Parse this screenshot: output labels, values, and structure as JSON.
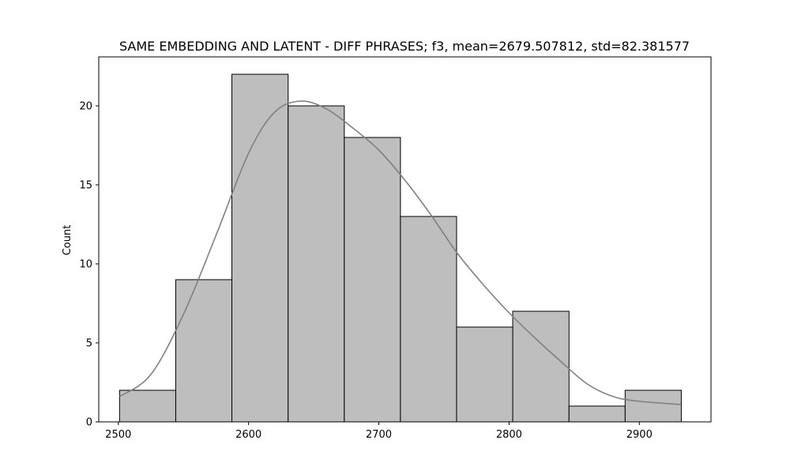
{
  "chart_data": {
    "type": "bar",
    "title": "SAME EMBEDDING AND LATENT - DIFF PHRASES; f3, mean=2679.507812, std=82.381577",
    "xlabel": "",
    "ylabel": "Count",
    "xlim": [
      2485,
      2955
    ],
    "ylim": [
      0,
      23.1
    ],
    "x_ticks": [
      2500,
      2600,
      2700,
      2800,
      2900
    ],
    "y_ticks": [
      0,
      5,
      10,
      15,
      20
    ],
    "grid": false,
    "legend": "none",
    "bins": [
      {
        "x0": 2501.0,
        "x1": 2544.1,
        "count": 2
      },
      {
        "x0": 2544.1,
        "x1": 2587.2,
        "count": 9
      },
      {
        "x0": 2587.2,
        "x1": 2630.4,
        "count": 22
      },
      {
        "x0": 2630.4,
        "x1": 2673.5,
        "count": 20
      },
      {
        "x0": 2673.5,
        "x1": 2716.6,
        "count": 18
      },
      {
        "x0": 2716.6,
        "x1": 2759.7,
        "count": 13
      },
      {
        "x0": 2759.7,
        "x1": 2802.8,
        "count": 6
      },
      {
        "x0": 2802.8,
        "x1": 2846.0,
        "count": 7
      },
      {
        "x0": 2846.0,
        "x1": 2889.1,
        "count": 1
      },
      {
        "x0": 2889.1,
        "x1": 2932.2,
        "count": 2
      }
    ],
    "kde": {
      "x": [
        2501,
        2525,
        2550,
        2575,
        2600,
        2620,
        2640,
        2660,
        2680,
        2700,
        2720,
        2740,
        2760,
        2780,
        2800,
        2820,
        2840,
        2860,
        2880,
        2900,
        2932
      ],
      "y": [
        1.6,
        3.0,
        6.8,
        11.8,
        17.0,
        19.6,
        20.3,
        19.8,
        18.6,
        17.2,
        15.3,
        13.1,
        10.7,
        8.7,
        6.9,
        5.3,
        3.8,
        2.4,
        1.6,
        1.3,
        1.1
      ]
    },
    "colors": {
      "bar_fill": "#bebebe",
      "bar_edge": "#000000",
      "kde_line": "#808080"
    }
  }
}
